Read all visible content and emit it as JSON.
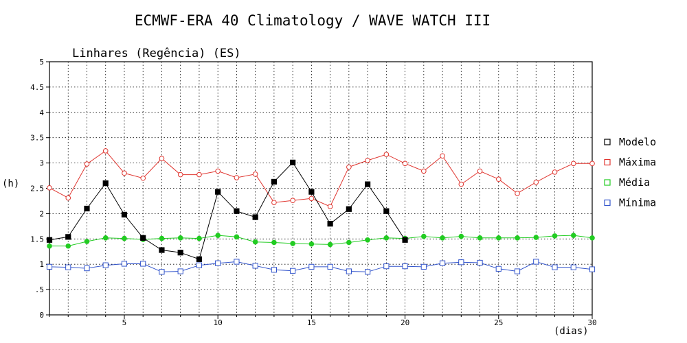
{
  "chart_data": {
    "type": "line",
    "title": "ECMWF-ERA 40 Climatology / WAVE WATCH III",
    "subtitle": "Linhares (Regência) (ES)",
    "xlabel": "(dias)",
    "ylabel": "(h)",
    "xlim": [
      1,
      30
    ],
    "ylim": [
      0,
      5
    ],
    "x_ticks": [
      5,
      10,
      15,
      20,
      25,
      30
    ],
    "y_ticks": [
      0,
      0.5,
      1,
      1.5,
      2,
      2.5,
      3,
      3.5,
      4,
      4.5,
      5
    ],
    "grid": true,
    "legend_position": "right",
    "series": [
      {
        "name": "Modelo",
        "color": "#000000",
        "marker": "filled-square",
        "x": [
          1,
          2,
          3,
          4,
          5,
          6,
          7,
          8,
          9,
          10,
          11,
          12,
          13,
          14,
          15,
          16,
          17,
          18,
          19,
          20
        ],
        "values": [
          1.48,
          1.54,
          2.1,
          2.6,
          1.98,
          1.52,
          1.28,
          1.23,
          1.1,
          2.43,
          2.05,
          1.93,
          2.63,
          3.01,
          2.43,
          1.8,
          2.09,
          2.58,
          2.05,
          1.48
        ]
      },
      {
        "name": "Máxima",
        "color": "#e0352f",
        "marker": "open-circle",
        "x": [
          1,
          2,
          3,
          4,
          5,
          6,
          7,
          8,
          9,
          10,
          11,
          12,
          13,
          14,
          15,
          16,
          17,
          18,
          19,
          20,
          21,
          22,
          23,
          24,
          25,
          26,
          27,
          28,
          29,
          30
        ],
        "values": [
          2.51,
          2.31,
          2.98,
          3.24,
          2.8,
          2.7,
          3.09,
          2.77,
          2.77,
          2.84,
          2.71,
          2.78,
          2.22,
          2.26,
          2.3,
          2.14,
          2.92,
          3.05,
          3.17,
          2.99,
          2.84,
          3.14,
          2.58,
          2.84,
          2.68,
          2.4,
          2.62,
          2.82,
          2.99,
          2.99
        ]
      },
      {
        "name": "Média",
        "color": "#22cc22",
        "marker": "filled-circle",
        "x": [
          1,
          2,
          3,
          4,
          5,
          6,
          7,
          8,
          9,
          10,
          11,
          12,
          13,
          14,
          15,
          16,
          17,
          18,
          19,
          20,
          21,
          22,
          23,
          24,
          25,
          26,
          27,
          28,
          29,
          30
        ],
        "values": [
          1.36,
          1.36,
          1.45,
          1.52,
          1.51,
          1.49,
          1.51,
          1.52,
          1.51,
          1.57,
          1.54,
          1.44,
          1.43,
          1.41,
          1.4,
          1.39,
          1.43,
          1.48,
          1.52,
          1.51,
          1.55,
          1.52,
          1.55,
          1.52,
          1.52,
          1.52,
          1.53,
          1.56,
          1.57,
          1.52
        ]
      },
      {
        "name": "Mínima",
        "color": "#3355cc",
        "marker": "open-square",
        "x": [
          1,
          2,
          3,
          4,
          5,
          6,
          7,
          8,
          9,
          10,
          11,
          12,
          13,
          14,
          15,
          16,
          17,
          18,
          19,
          20,
          21,
          22,
          23,
          24,
          25,
          26,
          27,
          28,
          29,
          30
        ],
        "values": [
          0.95,
          0.94,
          0.92,
          0.98,
          1.01,
          1.01,
          0.85,
          0.86,
          0.98,
          1.02,
          1.05,
          0.97,
          0.89,
          0.87,
          0.95,
          0.95,
          0.86,
          0.85,
          0.96,
          0.96,
          0.95,
          1.02,
          1.04,
          1.03,
          0.91,
          0.86,
          1.05,
          0.94,
          0.94,
          0.9
        ]
      }
    ]
  }
}
